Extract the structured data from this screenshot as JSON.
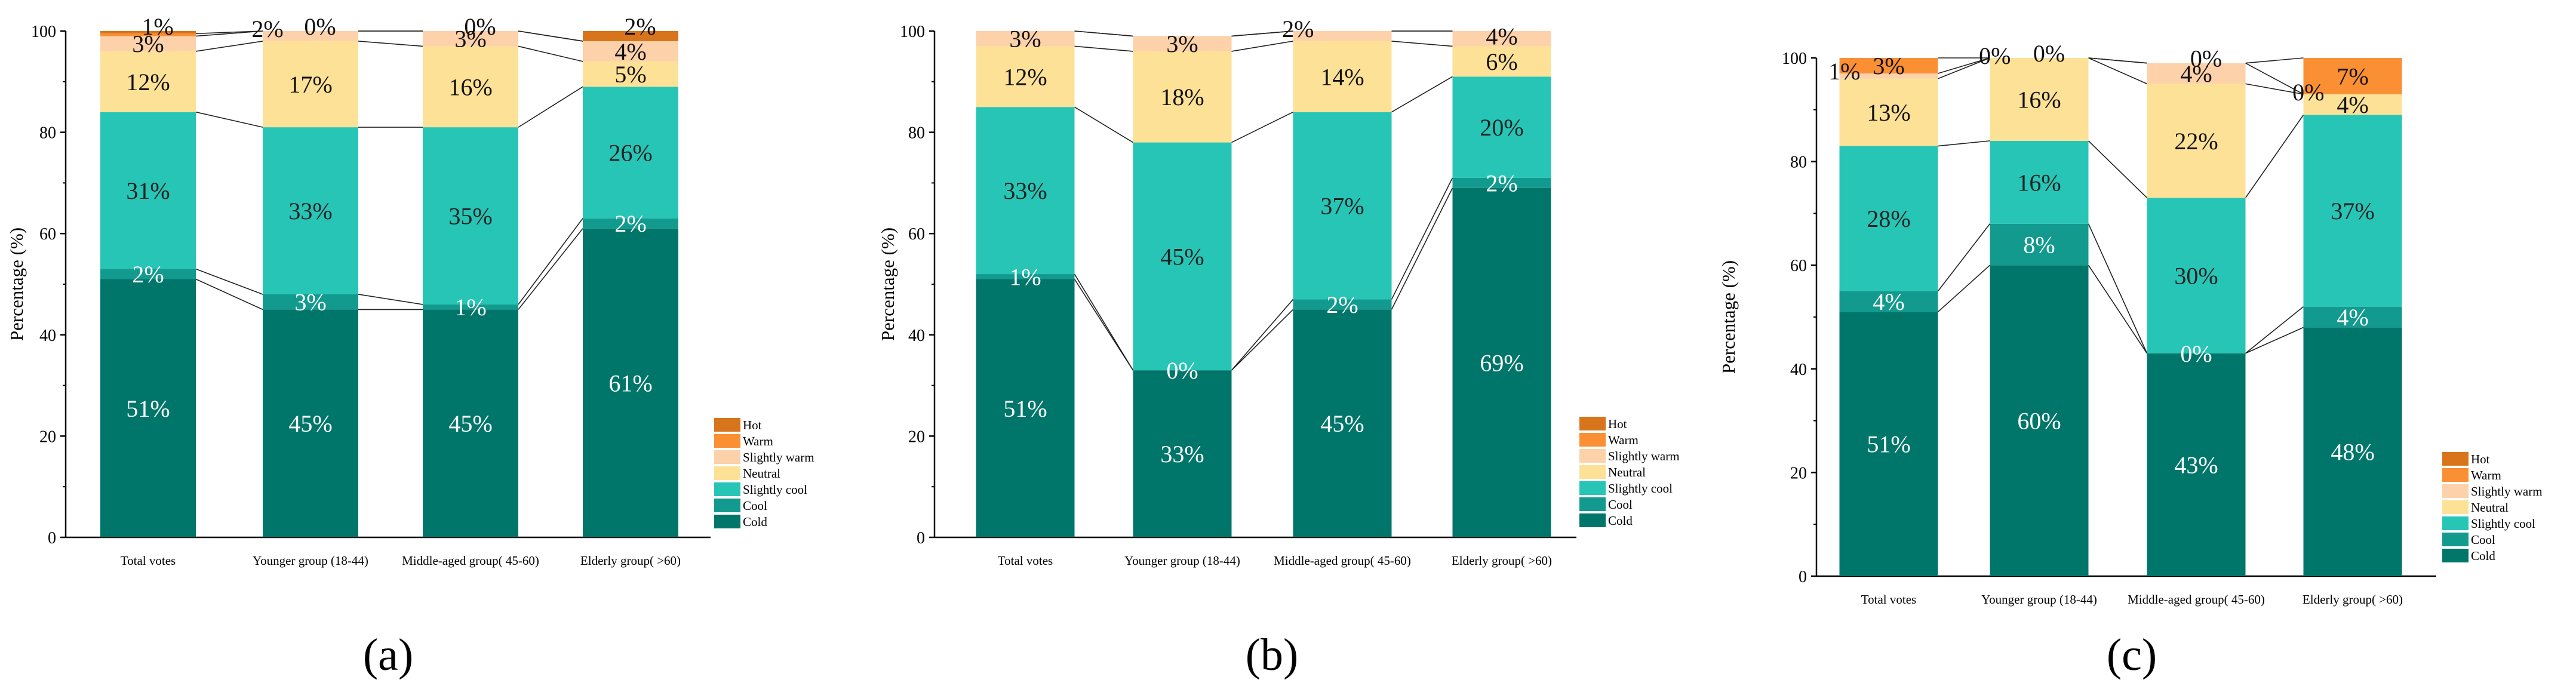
{
  "categories": [
    "Hot",
    "Warm",
    "Slightly  warm",
    "Neutral",
    "Slightly  cool",
    "Cool",
    "Cold"
  ],
  "colors": {
    "Hot": "#d8741b",
    "Warm": "#fb8f33",
    "Slightly  warm": "#fdd1a9",
    "Neutral": "#fde196",
    "Slightly  cool": "#27c5b6",
    "Cool": "#119a8d",
    "Cold": "#00756a"
  },
  "chart_data": [
    {
      "type": "bar",
      "stacked": true,
      "panel_label": "(a)",
      "ylabel": "Percentage (%)",
      "ylim": [
        0,
        100
      ],
      "yticks": [
        "0",
        "20",
        "40",
        "60",
        "80",
        "100"
      ],
      "groups": [
        "Total votes",
        "Younger group (18-44)",
        "Middle-aged group( 45-60)",
        "Elderly group( >60)"
      ],
      "series": [
        {
          "name": "Cold",
          "values": [
            51,
            45,
            45,
            61
          ],
          "labels": [
            "51%",
            "45%",
            "45%",
            "61%"
          ]
        },
        {
          "name": "Cool",
          "values": [
            2,
            3,
            1,
            2
          ],
          "labels": [
            "2%",
            "3%",
            "1%",
            "2%"
          ]
        },
        {
          "name": "Slightly  cool",
          "values": [
            31,
            33,
            35,
            26
          ],
          "labels": [
            "31%",
            "33%",
            "35%",
            "26%"
          ]
        },
        {
          "name": "Neutral",
          "values": [
            12,
            17,
            16,
            5
          ],
          "labels": [
            "12%",
            "17%",
            "16%",
            "5%"
          ]
        },
        {
          "name": "Slightly  warm",
          "values": [
            3,
            2,
            3,
            4
          ],
          "labels": [
            "3%",
            "2%",
            "3%",
            "4%"
          ]
        },
        {
          "name": "Warm",
          "values": [
            0.5,
            0,
            0,
            0
          ],
          "labels": [
            "",
            "",
            "",
            ""
          ]
        },
        {
          "name": "Hot",
          "values": [
            0.5,
            0,
            0,
            2
          ],
          "labels": [
            "1%",
            "0%",
            "0%",
            "2%"
          ]
        }
      ]
    },
    {
      "type": "bar",
      "stacked": true,
      "panel_label": "(b)",
      "ylabel": "Percentage (%)",
      "ylim": [
        0,
        100
      ],
      "yticks": [
        "0",
        "20",
        "40",
        "60",
        "80",
        "100"
      ],
      "groups": [
        "Total votes",
        "Younger group (18-44)",
        "Middle-aged group( 45-60)",
        "Elderly group( >60)"
      ],
      "series": [
        {
          "name": "Cold",
          "values": [
            51,
            33,
            45,
            69
          ],
          "labels": [
            "51%",
            "33%",
            "45%",
            "69%"
          ]
        },
        {
          "name": "Cool",
          "values": [
            1,
            0,
            2,
            2
          ],
          "labels": [
            "1%",
            "0%",
            "2%",
            "2%"
          ]
        },
        {
          "name": "Slightly  cool",
          "values": [
            33,
            45,
            37,
            20
          ],
          "labels": [
            "33%",
            "45%",
            "37%",
            "20%"
          ]
        },
        {
          "name": "Neutral",
          "values": [
            12,
            18,
            14,
            6
          ],
          "labels": [
            "12%",
            "18%",
            "14%",
            "6%"
          ]
        },
        {
          "name": "Slightly  warm",
          "values": [
            3,
            3,
            2,
            4
          ],
          "labels": [
            "3%",
            "3%",
            "2%",
            "4%"
          ]
        },
        {
          "name": "Warm",
          "values": [
            0,
            0,
            0,
            0
          ],
          "labels": [
            "",
            "",
            "",
            ""
          ]
        },
        {
          "name": "Hot",
          "values": [
            0,
            0,
            0,
            0
          ],
          "labels": [
            "",
            "",
            "",
            ""
          ]
        }
      ]
    },
    {
      "type": "bar",
      "stacked": true,
      "panel_label": "(c)",
      "ylabel": "Percentage (%)",
      "ylim": [
        0,
        100
      ],
      "yticks": [
        "0",
        "20",
        "40",
        "60",
        "80",
        "100"
      ],
      "groups": [
        "Total votes",
        "Younger group (18-44)",
        "Middle-aged group( 45-60)",
        "Elderly group( >60)"
      ],
      "series": [
        {
          "name": "Cold",
          "values": [
            51,
            60,
            43,
            48
          ],
          "labels": [
            "51%",
            "60%",
            "43%",
            "48%"
          ]
        },
        {
          "name": "Cool",
          "values": [
            4,
            8,
            0,
            4
          ],
          "labels": [
            "4%",
            "8%",
            "0%",
            "4%"
          ]
        },
        {
          "name": "Slightly  cool",
          "values": [
            28,
            16,
            30,
            37
          ],
          "labels": [
            "28%",
            "16%",
            "30%",
            "37%"
          ]
        },
        {
          "name": "Neutral",
          "values": [
            13,
            16,
            22,
            4
          ],
          "labels": [
            "13%",
            "16%",
            "22%",
            "4%"
          ]
        },
        {
          "name": "Slightly  warm",
          "values": [
            1,
            0,
            4,
            0
          ],
          "labels": [
            "1%",
            "0%",
            "4%",
            "0%"
          ]
        },
        {
          "name": "Warm",
          "values": [
            3,
            0,
            0,
            7
          ],
          "labels": [
            "3%",
            "0%",
            "0%",
            "7%"
          ]
        },
        {
          "name": "Hot",
          "values": [
            0,
            0,
            0,
            0
          ],
          "labels": [
            "",
            "",
            "",
            ""
          ]
        }
      ]
    }
  ]
}
